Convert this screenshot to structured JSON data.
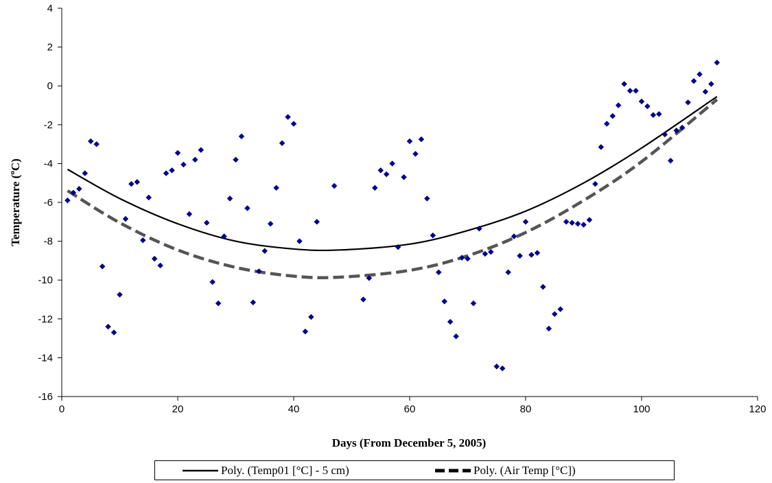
{
  "chart_data": {
    "type": "scatter",
    "title": "",
    "xlabel": "Days (From December 5, 2005)",
    "ylabel": "Temperature (",
    "ylabel_superscript": "o",
    "ylabel_suffix": "C)",
    "xlim": [
      0,
      120
    ],
    "ylim": [
      -16,
      4
    ],
    "x_ticks": [
      "0",
      "20",
      "40",
      "60",
      "80",
      "100",
      "120"
    ],
    "y_ticks": [
      "4",
      "2",
      "0",
      "-2",
      "-4",
      "-6",
      "-8",
      "-10",
      "-12",
      "-14",
      "-16"
    ],
    "grid": false,
    "legend_position": "bottom",
    "colors": {
      "points": "#00008b",
      "trend_soil": "#000000",
      "trend_air": "#555555"
    },
    "series": [
      {
        "type": "scatter",
        "marker": "diamond",
        "points": [
          [
            1,
            -5.9
          ],
          [
            2,
            -5.5
          ],
          [
            3,
            -5.3
          ],
          [
            4,
            -4.5
          ],
          [
            5,
            -2.85
          ],
          [
            6,
            -3.0
          ],
          [
            7,
            -9.3
          ],
          [
            8,
            -12.4
          ],
          [
            9,
            -12.7
          ],
          [
            10,
            -10.75
          ],
          [
            11,
            -6.85
          ],
          [
            12,
            -5.05
          ],
          [
            13,
            -4.95
          ],
          [
            14,
            -7.95
          ],
          [
            15,
            -5.75
          ],
          [
            16,
            -8.9
          ],
          [
            17,
            -9.25
          ],
          [
            18,
            -4.5
          ],
          [
            19,
            -4.35
          ],
          [
            20,
            -3.45
          ],
          [
            21,
            -4.05
          ],
          [
            22,
            -6.6
          ],
          [
            23,
            -3.8
          ],
          [
            24,
            -3.3
          ],
          [
            25,
            -7.05
          ],
          [
            26,
            -10.1
          ],
          [
            27,
            -11.2
          ],
          [
            28,
            -7.75
          ],
          [
            29,
            -5.8
          ],
          [
            30,
            -3.8
          ],
          [
            31,
            -2.6
          ],
          [
            32,
            -6.3
          ],
          [
            33,
            -11.15
          ],
          [
            34,
            -9.55
          ],
          [
            35,
            -8.5
          ],
          [
            36,
            -7.1
          ],
          [
            37,
            -5.25
          ],
          [
            38,
            -2.95
          ],
          [
            39,
            -1.6
          ],
          [
            40,
            -1.95
          ],
          [
            41,
            -8.0
          ],
          [
            42,
            -12.65
          ],
          [
            43,
            -11.9
          ],
          [
            44,
            -7.0
          ],
          [
            47,
            -5.15
          ],
          [
            52,
            -11.0
          ],
          [
            53,
            -9.9
          ],
          [
            54,
            -5.25
          ],
          [
            55,
            -4.35
          ],
          [
            56,
            -4.55
          ],
          [
            57,
            -4.0
          ],
          [
            58,
            -8.3
          ],
          [
            59,
            -4.7
          ],
          [
            60,
            -2.85
          ],
          [
            61,
            -3.5
          ],
          [
            62,
            -2.75
          ],
          [
            63,
            -5.8
          ],
          [
            64,
            -7.7
          ],
          [
            65,
            -9.6
          ],
          [
            66,
            -11.1
          ],
          [
            67,
            -12.15
          ],
          [
            68,
            -12.9
          ],
          [
            69,
            -8.85
          ],
          [
            70,
            -8.9
          ],
          [
            71,
            -11.2
          ],
          [
            72,
            -7.35
          ],
          [
            73,
            -8.65
          ],
          [
            74,
            -8.55
          ],
          [
            75,
            -14.45
          ],
          [
            76,
            -14.55
          ],
          [
            77,
            -9.6
          ],
          [
            78,
            -7.75
          ],
          [
            79,
            -8.75
          ],
          [
            80,
            -7.0
          ],
          [
            81,
            -8.7
          ],
          [
            82,
            -8.6
          ],
          [
            83,
            -10.35
          ],
          [
            84,
            -12.5
          ],
          [
            85,
            -11.75
          ],
          [
            86,
            -11.5
          ],
          [
            87,
            -7.0
          ],
          [
            88,
            -7.05
          ],
          [
            89,
            -7.1
          ],
          [
            90,
            -7.15
          ],
          [
            91,
            -6.9
          ],
          [
            92,
            -5.05
          ],
          [
            93,
            -3.15
          ],
          [
            94,
            -1.95
          ],
          [
            95,
            -1.55
          ],
          [
            96,
            -1.0
          ],
          [
            97,
            0.1
          ],
          [
            98,
            -0.25
          ],
          [
            99,
            -0.25
          ],
          [
            100,
            -0.8
          ],
          [
            101,
            -1.05
          ],
          [
            102,
            -1.5
          ],
          [
            103,
            -1.45
          ],
          [
            104,
            -2.5
          ],
          [
            105,
            -3.85
          ],
          [
            106,
            -2.3
          ],
          [
            107,
            -2.15
          ],
          [
            108,
            -0.85
          ],
          [
            109,
            0.25
          ],
          [
            110,
            0.6
          ],
          [
            111,
            -0.3
          ],
          [
            112,
            0.1
          ],
          [
            113,
            1.2
          ]
        ]
      },
      {
        "name": "Poly. (Temp01 [°C] - 5 cm)",
        "type": "line",
        "style": "solid",
        "x": [
          1,
          10,
          20,
          30,
          40,
          48,
          60,
          70,
          80,
          90,
          100,
          113
        ],
        "values": [
          -4.3,
          -5.8,
          -7.1,
          -8.0,
          -8.4,
          -8.45,
          -8.15,
          -7.45,
          -6.45,
          -5.0,
          -3.2,
          -0.55
        ]
      },
      {
        "name": "Poly. (Air Temp [°C])",
        "type": "line",
        "style": "dashed",
        "x": [
          1,
          10,
          20,
          30,
          40,
          48,
          60,
          70,
          80,
          90,
          100,
          113
        ],
        "values": [
          -5.4,
          -7.05,
          -8.45,
          -9.35,
          -9.8,
          -9.85,
          -9.5,
          -8.75,
          -7.55,
          -5.9,
          -3.9,
          -0.7
        ]
      }
    ]
  }
}
